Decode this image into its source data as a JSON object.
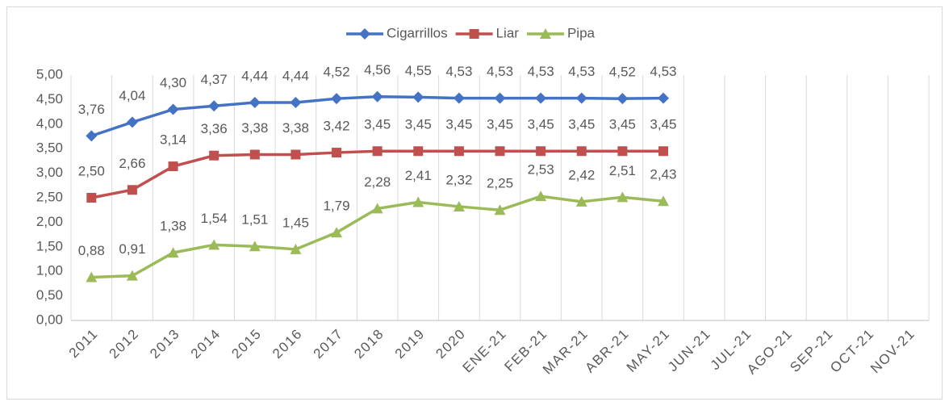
{
  "chart_data": {
    "type": "line",
    "categories": [
      "2011",
      "2012",
      "2013",
      "2014",
      "2015",
      "2016",
      "2017",
      "2018",
      "2019",
      "2020",
      "ENE-21",
      "FEB-21",
      "MAR-21",
      "ABR-21",
      "MAY-21",
      "JUN-21",
      "JUL-21",
      "AGO-21",
      "SEP-21",
      "OCT-21",
      "NOV-21"
    ],
    "series": [
      {
        "name": "Cigarrillos",
        "color": "#4472c4",
        "marker": "diamond",
        "values": [
          3.76,
          4.04,
          4.3,
          4.37,
          4.44,
          4.44,
          4.52,
          4.56,
          4.55,
          4.53,
          4.53,
          4.53,
          4.53,
          4.52,
          4.53,
          null,
          null,
          null,
          null,
          null,
          null
        ],
        "value_labels": [
          "3,76",
          "4,04",
          "4,30",
          "4,37",
          "4,44",
          "4,44",
          "4,52",
          "4,56",
          "4,55",
          "4,53",
          "4,53",
          "4,53",
          "4,53",
          "4,52",
          "4,53",
          null,
          null,
          null,
          null,
          null,
          null
        ]
      },
      {
        "name": "Liar",
        "color": "#c0504d",
        "marker": "square",
        "values": [
          2.5,
          2.66,
          3.14,
          3.36,
          3.38,
          3.38,
          3.42,
          3.45,
          3.45,
          3.45,
          3.45,
          3.45,
          3.45,
          3.45,
          3.45,
          null,
          null,
          null,
          null,
          null,
          null
        ],
        "value_labels": [
          "2,50",
          "2,66",
          "3,14",
          "3,36",
          "3,38",
          "3,38",
          "3,42",
          "3,45",
          "3,45",
          "3,45",
          "3,45",
          "3,45",
          "3,45",
          "3,45",
          "3,45",
          null,
          null,
          null,
          null,
          null,
          null
        ]
      },
      {
        "name": "Pipa",
        "color": "#9bbb59",
        "marker": "triangle",
        "values": [
          0.88,
          0.91,
          1.38,
          1.54,
          1.51,
          1.45,
          1.79,
          2.28,
          2.41,
          2.32,
          2.25,
          2.53,
          2.42,
          2.51,
          2.43,
          null,
          null,
          null,
          null,
          null,
          null
        ],
        "value_labels": [
          "0,88",
          "0,91",
          "1,38",
          "1,54",
          "1,51",
          "1,45",
          "1,79",
          "2,28",
          "2,41",
          "2,32",
          "2,25",
          "2,53",
          "2,42",
          "2,51",
          "2,43",
          null,
          null,
          null,
          null,
          null,
          null
        ]
      }
    ],
    "ylim": [
      0,
      5
    ],
    "yticks": [
      {
        "value": 0,
        "label": "0,00"
      },
      {
        "value": 0.5,
        "label": "0,50"
      },
      {
        "value": 1,
        "label": "1,00"
      },
      {
        "value": 1.5,
        "label": "1,50"
      },
      {
        "value": 2,
        "label": "2,00"
      },
      {
        "value": 2.5,
        "label": "2,50"
      },
      {
        "value": 3,
        "label": "3,00"
      },
      {
        "value": 3.5,
        "label": "3,50"
      },
      {
        "value": 4,
        "label": "4,00"
      },
      {
        "value": 4.5,
        "label": "4,50"
      },
      {
        "value": 5,
        "label": "5,00"
      }
    ],
    "grid": "vertical",
    "legend": "top"
  }
}
